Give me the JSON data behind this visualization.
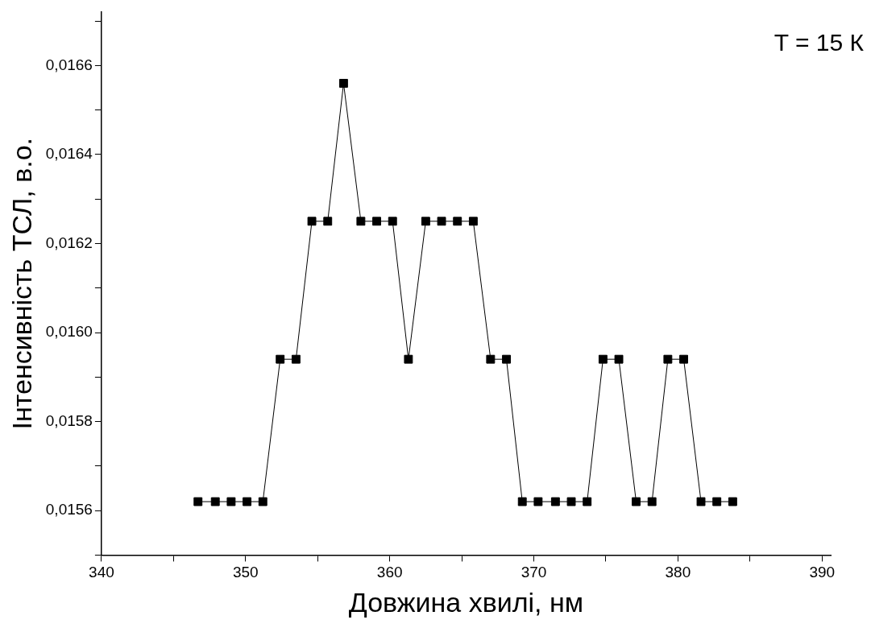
{
  "chart_data": {
    "type": "line",
    "xlabel": "Довжина хвилі, нм",
    "ylabel": "Інтенсивність ТСЛ, в.о.",
    "annotations": [
      "T = 15 К"
    ],
    "x": [
      346.7,
      347.9,
      349.0,
      350.1,
      351.2,
      352.4,
      353.5,
      354.6,
      355.7,
      356.8,
      358.0,
      359.1,
      360.2,
      361.3,
      362.5,
      363.6,
      364.7,
      365.8,
      367.0,
      368.1,
      369.2,
      370.3,
      371.5,
      372.6,
      373.7,
      374.8,
      375.9,
      377.1,
      378.2,
      379.3,
      380.4,
      381.6,
      382.7,
      383.8
    ],
    "series": [
      {
        "color": "#000000",
        "values": [
          0.01562,
          0.01562,
          0.01562,
          0.01562,
          0.01562,
          0.01594,
          0.01594,
          0.01625,
          0.01625,
          0.01656,
          0.01625,
          0.01625,
          0.01625,
          0.01594,
          0.01625,
          0.01625,
          0.01625,
          0.01625,
          0.01594,
          0.01594,
          0.01562,
          0.01562,
          0.01562,
          0.01562,
          0.01562,
          0.01594,
          0.01594,
          0.01562,
          0.01562,
          0.01594,
          0.01594,
          0.01562,
          0.01562,
          0.01562
        ]
      }
    ],
    "xlim": [
      340,
      390.6
    ],
    "xticks": [
      340,
      {
        "value": 345,
        "label": null
      },
      350,
      {
        "value": 355,
        "label": null
      },
      360,
      {
        "value": 365,
        "label": null
      },
      370,
      {
        "value": 375,
        "label": null
      },
      380,
      {
        "value": 385,
        "label": null
      },
      390
    ],
    "ylim": [
      0.0155,
      0.01672
    ],
    "yticks": [
      {
        "value": 0.0155,
        "label": null
      },
      {
        "value": 0.0156,
        "label": "0,0156"
      },
      {
        "value": 0.0157,
        "label": null
      },
      {
        "value": 0.0158,
        "label": "0,0158"
      },
      {
        "value": 0.0159,
        "label": null
      },
      {
        "value": 0.016,
        "label": "0,0160"
      },
      {
        "value": 0.0161,
        "label": null
      },
      {
        "value": 0.0162,
        "label": "0,0162"
      },
      {
        "value": 0.0163,
        "label": null
      },
      {
        "value": 0.0164,
        "label": "0,0164"
      },
      {
        "value": 0.0165,
        "label": null
      },
      {
        "value": 0.0166,
        "label": "0,0166"
      },
      {
        "value": 0.0167,
        "label": null
      }
    ],
    "grid": false,
    "legend": false,
    "marker": "square",
    "line_style": "solid"
  }
}
